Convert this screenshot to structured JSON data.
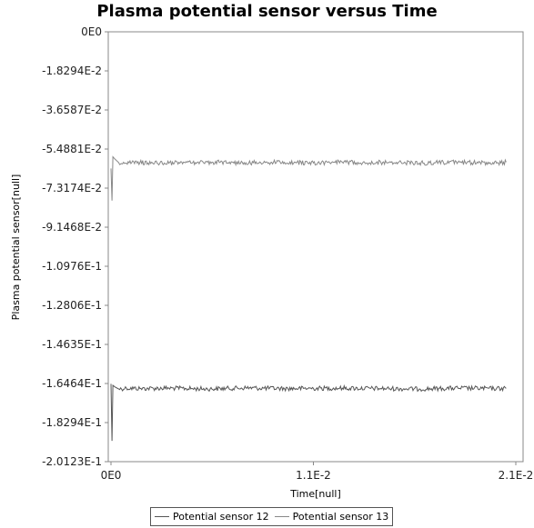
{
  "chart_data": {
    "type": "line",
    "title": "Plasma potential sensor versus Time",
    "xlabel": "Time[null]",
    "ylabel": "Plasma potential sensor[null]",
    "xlim": [
      0,
      0.021
    ],
    "ylim": [
      -0.20123,
      0
    ],
    "x_ticks": [
      "0E0",
      "1.1E-2",
      "2.1E-2"
    ],
    "x_tick_values": [
      0,
      0.0105,
      0.021
    ],
    "y_ticks": [
      "0E0",
      "-1.8294E-2",
      "-3.6587E-2",
      "-5.4881E-2",
      "-7.3174E-2",
      "-9.1468E-2",
      "-1.0976E-1",
      "-1.2806E-1",
      "-1.4635E-1",
      "-1.6464E-1",
      "-1.8294E-1",
      "-2.0123E-1"
    ],
    "y_tick_values": [
      0,
      -0.018294,
      -0.036587,
      -0.054881,
      -0.073174,
      -0.091468,
      -0.10976,
      -0.12806,
      -0.14635,
      -0.16464,
      -0.18294,
      -0.20123
    ],
    "grid": false,
    "legend_position": "bottom",
    "series": [
      {
        "name": "Potential sensor 12",
        "color": "#555555",
        "x": [
          0,
          5e-05,
          0.0001,
          0.0002,
          0.0004,
          0.0008,
          0.0015,
          0.003,
          0.005,
          0.007,
          0.009,
          0.0105,
          0.012,
          0.014,
          0.016,
          0.018,
          0.02,
          0.0205
        ],
        "y": [
          -0.1648,
          -0.1915,
          -0.1655,
          -0.1662,
          -0.1672,
          -0.1668,
          -0.167,
          -0.1668,
          -0.1672,
          -0.1667,
          -0.167,
          -0.1669,
          -0.1668,
          -0.167,
          -0.1672,
          -0.1668,
          -0.167,
          -0.1669
        ]
      },
      {
        "name": "Potential sensor 13",
        "color": "#888888",
        "x": [
          0,
          5e-05,
          0.0001,
          0.0002,
          0.0004,
          0.0008,
          0.0015,
          0.003,
          0.005,
          0.007,
          0.009,
          0.0105,
          0.012,
          0.014,
          0.016,
          0.018,
          0.02,
          0.0205
        ],
        "y": [
          -0.064,
          -0.079,
          -0.0585,
          -0.0595,
          -0.0612,
          -0.0615,
          -0.0612,
          -0.0615,
          -0.061,
          -0.0613,
          -0.0611,
          -0.0614,
          -0.061,
          -0.0612,
          -0.0614,
          -0.0611,
          -0.0615,
          -0.061
        ]
      }
    ]
  }
}
